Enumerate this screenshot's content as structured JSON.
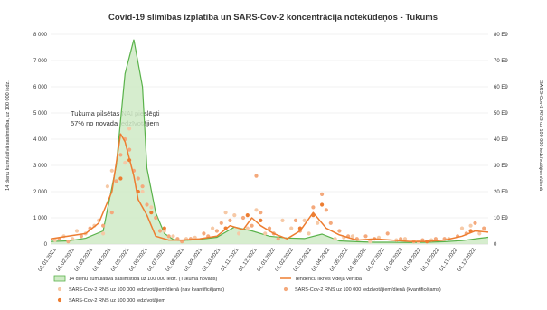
{
  "chart_data": {
    "type": "line",
    "title": "Covid-19 slimības izplatība un SARS-Cov-2 koncentrācija notekūdeņos - Tukums",
    "ylabel_left": "14 dienu kumulatīvā saslimstība, uz 100 000 iedz.",
    "ylabel_right": "SARS-Cov-2 RNS uz 100 000 iedzīvotājiem/dienā",
    "ylim_left": [
      0,
      8000
    ],
    "yticks_left": [
      "0",
      "1 000",
      "2 000",
      "3 000",
      "4 000",
      "5 000",
      "6 000",
      "7 000",
      "8 000"
    ],
    "ylim_right": [
      0,
      80
    ],
    "yticks_right": [
      "0",
      "10 E9",
      "20 E9",
      "30 E9",
      "40 E9",
      "50 E9",
      "60 E9",
      "70 E9",
      "80 E9"
    ],
    "xlim": [
      0,
      100
    ],
    "xticks": [
      "01.01.2021",
      "01.02.2021",
      "01.03.2021",
      "01.04.2021",
      "01.05.2021",
      "01.06.2021",
      "01.07.2021",
      "01.08.2021",
      "01.09.2021",
      "01.10.2021",
      "01.11.2021",
      "01.12.2021",
      "01.01.2022",
      "01.02.2022",
      "01.03.2022",
      "01.04.2022",
      "01.05.2022",
      "01.06.2022",
      "01.07.2022",
      "01.08.2022",
      "01.09.2022",
      "01.10.2022",
      "01.11.2022",
      "01.12.2022"
    ],
    "annotation": [
      "Tukuma pilsētas NAI pieslēgti",
      "57% no novada iedzīvotājiem"
    ],
    "series": [
      {
        "name": "14 dienu kumulatīvā saslimstība uz 100 000 iedz. (Tukuma novads)",
        "kind": "area",
        "axis": "left",
        "color": "#59b24a",
        "fill": "#cfeac6",
        "x": [
          0,
          4,
          8,
          12,
          15,
          17,
          19,
          21,
          22,
          24,
          26,
          28,
          30,
          34,
          38,
          42,
          46,
          50,
          54,
          58,
          62,
          66,
          70,
          74,
          78,
          82,
          86,
          90,
          94,
          98,
          100
        ],
        "y": [
          100,
          120,
          220,
          500,
          3000,
          6500,
          7800,
          6000,
          2900,
          1200,
          400,
          180,
          130,
          180,
          260,
          650,
          500,
          300,
          230,
          210,
          380,
          120,
          90,
          70,
          70,
          60,
          70,
          90,
          130,
          220,
          260
        ]
      },
      {
        "name": "Tendenču līknes vidējā vērtība",
        "kind": "line",
        "axis": "right",
        "color": "#ed7d31",
        "x": [
          0,
          4,
          8,
          11,
          14,
          16,
          17,
          19,
          20,
          22,
          24,
          27,
          30,
          34,
          38,
          41,
          44,
          46,
          48,
          51,
          54,
          57,
          60,
          63,
          66,
          70,
          74,
          78,
          82,
          86,
          90,
          94,
          97,
          100
        ],
        "y": [
          2,
          3,
          4,
          8,
          20,
          42,
          39,
          26,
          17,
          11,
          3,
          1.5,
          1.5,
          2,
          3,
          7,
          5.5,
          10,
          7,
          4,
          2,
          5,
          12,
          6,
          3.5,
          1.5,
          2,
          1.5,
          1,
          1,
          1.5,
          3,
          5,
          4.5
        ]
      },
      {
        "name": "SARS-Cov-2 RNS uz 100 000 iedzīvotājiem/dienā (nav kvantificējams)",
        "kind": "scatter",
        "axis": "right",
        "color": "#f6c9a6",
        "x": [
          1,
          3,
          5,
          6,
          8,
          10,
          11,
          12,
          13,
          14,
          17,
          18,
          21,
          23,
          26,
          28,
          31,
          33,
          37,
          40,
          42,
          43,
          45,
          47,
          49,
          53,
          55,
          58,
          59,
          61,
          65,
          67,
          69,
          73,
          75,
          79,
          81,
          84,
          87,
          91,
          94,
          96,
          98
        ],
        "y": [
          1.5,
          3,
          2,
          5,
          4,
          7,
          9,
          4,
          22,
          28,
          31,
          44,
          20,
          14,
          5,
          3,
          2,
          2.5,
          6,
          12,
          11,
          4,
          6,
          13,
          4,
          9,
          6,
          9,
          4,
          8,
          2,
          2.5,
          3,
          1,
          2.5,
          1.5,
          2,
          1,
          1.5,
          2,
          6,
          7,
          4
        ]
      },
      {
        "name": "SARS-Cov-2 RNS uz 100 000 iedzīvotājiem/dienā (kvantificējams)",
        "kind": "scatter",
        "axis": "right",
        "color": "#f4a97c",
        "x": [
          2,
          4,
          7,
          9,
          12,
          14,
          15,
          16,
          17,
          18,
          19,
          20,
          21,
          22,
          24,
          25,
          27,
          29,
          30,
          32,
          35,
          36,
          38,
          39,
          41,
          44,
          46,
          47,
          48,
          50,
          51,
          52,
          56,
          57,
          60,
          62,
          63,
          64,
          66,
          68,
          70,
          72,
          74,
          77,
          80,
          83,
          85,
          88,
          90,
          93,
          95,
          97,
          99
        ],
        "y": [
          2,
          1,
          3,
          6,
          7,
          12,
          24,
          34,
          40,
          36,
          28,
          25,
          22,
          15,
          10,
          5,
          3,
          2,
          1,
          2,
          4,
          3,
          5,
          8,
          9,
          10,
          7,
          26,
          12,
          6,
          4,
          2,
          9,
          5,
          14,
          19,
          13,
          8,
          5,
          3,
          2,
          3,
          2,
          4,
          2,
          1,
          1.5,
          2,
          2,
          3,
          4,
          8,
          6
        ]
      },
      {
        "name": "SARS-Cov-2 RNS uz 100 000 iedzīvotājiem",
        "kind": "scatter",
        "axis": "right",
        "color": "#ed7d31",
        "x": [
          16,
          18,
          20,
          23,
          26,
          40,
          45,
          48,
          57,
          60,
          62,
          86,
          96
        ],
        "y": [
          25,
          32,
          20,
          12,
          6,
          6,
          11,
          9,
          6,
          11,
          15,
          1,
          5
        ]
      }
    ],
    "legend": [
      {
        "label": "14 dienu kumulatīvā saslimstība uz 100 000 iedz. (Tukuma novads)",
        "marker": "area",
        "color": "#59b24a"
      },
      {
        "label": "Tendenču līknes vidējā vērtība",
        "marker": "line",
        "color": "#ed7d31"
      },
      {
        "label": "SARS-Cov-2 RNS uz 100 000 iedzīvotājiem/dienā (nav kvantificējams)",
        "marker": "dot",
        "color": "#f6c9a6"
      },
      {
        "label": "SARS-Cov-2 RNS uz 100 000 iedzīvotājiem/dienā (kvantificējams)",
        "marker": "dot",
        "color": "#f4a97c"
      },
      {
        "label": "SARS-Cov-2 RNS uz 100 000 iedzīvotājiem",
        "marker": "dot",
        "color": "#ed7d31"
      }
    ]
  }
}
